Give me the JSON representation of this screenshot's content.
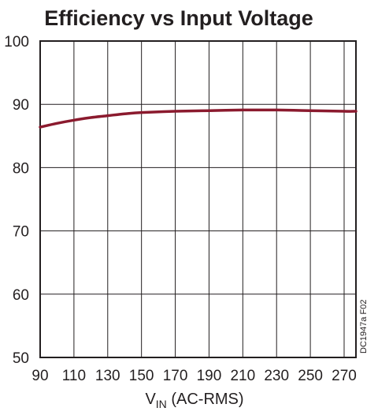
{
  "chart_data": {
    "type": "line",
    "title": "Efficiency vs Input Voltage",
    "xlabel": {
      "main": "V",
      "sub": "IN",
      "rest": " (AC-RMS)"
    },
    "ylabel": "",
    "figure_code": "DC1947a F02",
    "xlim": [
      90,
      277
    ],
    "ylim": [
      50,
      100
    ],
    "xticks": [
      90,
      110,
      130,
      150,
      170,
      190,
      210,
      230,
      250,
      270
    ],
    "yticks": [
      50,
      60,
      70,
      80,
      90,
      100
    ],
    "grid": true,
    "series_color": "#8b1a2e",
    "series": [
      {
        "x": [
          90,
          100,
          110,
          120,
          130,
          140,
          150,
          170,
          190,
          210,
          230,
          250,
          270,
          277
        ],
        "y": [
          86.4,
          87.0,
          87.5,
          87.9,
          88.2,
          88.5,
          88.7,
          88.9,
          89.0,
          89.1,
          89.1,
          89.0,
          88.9,
          88.9
        ]
      }
    ]
  }
}
